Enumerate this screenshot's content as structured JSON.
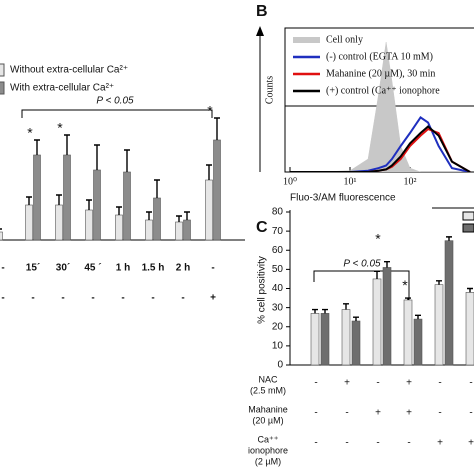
{
  "chart_data": [
    {
      "type": "bar",
      "annotation": "P < 0.05",
      "star": "*",
      "categories": [
        "-",
        "15´",
        "30´",
        "45 ´",
        "1 h",
        "1.5 h",
        "2 h",
        "-"
      ],
      "condition_row": [
        "-",
        "-",
        "-",
        "-",
        "-",
        "-",
        "-",
        "+"
      ],
      "stars": [
        false,
        true,
        true,
        false,
        false,
        false,
        false,
        true
      ],
      "series": [
        {
          "name": "Without extra-cellular Ca²⁺",
          "color": "#e6e6e6",
          "values": [
            8,
            35,
            35,
            30,
            25,
            20,
            18,
            60
          ],
          "errors": [
            3,
            8,
            10,
            10,
            8,
            8,
            6,
            15
          ]
        },
        {
          "name": "With extra-cellular Ca²⁺",
          "color": "#8c8c8c",
          "values": [
            null,
            85,
            85,
            70,
            68,
            42,
            20,
            100
          ],
          "errors": [
            null,
            15,
            20,
            25,
            22,
            18,
            8,
            22
          ]
        }
      ]
    },
    {
      "type": "line",
      "panel": "B",
      "log_x": true,
      "xlabel": "Fluo-3/AM fluorescence",
      "ylabel": "Counts",
      "xlim": [
        1,
        1000
      ],
      "xticks": [
        {
          "value": 1,
          "label": "10⁰"
        },
        {
          "value": 10,
          "label": "10¹"
        },
        {
          "value": 100,
          "label": "10²"
        }
      ],
      "x": [
        1,
        3,
        10,
        20,
        30,
        40,
        50,
        70,
        100,
        150,
        200,
        300,
        500,
        1000
      ],
      "series": [
        {
          "name": "Cell only",
          "color": "#c8c8c8",
          "fill": true,
          "values": [
            0,
            0,
            1,
            10,
            60,
            100,
            70,
            20,
            3,
            0,
            0,
            0,
            0,
            0
          ]
        },
        {
          "name": "(-) control (EGTA 10 mM)",
          "color": "#1f2fbf",
          "values": [
            0,
            0,
            0,
            1,
            3,
            5,
            10,
            20,
            30,
            42,
            38,
            20,
            3,
            0
          ]
        },
        {
          "name": "Mahanine  (20 µM), 30 min",
          "color": "#e01010",
          "values": [
            0,
            0,
            0,
            0,
            1,
            2,
            4,
            10,
            20,
            28,
            33,
            30,
            8,
            0
          ]
        },
        {
          "name": "(+) control (Ca⁺⁺ ionophore",
          "color": "#000000",
          "values": [
            0,
            0,
            0,
            0,
            1,
            2,
            5,
            12,
            22,
            30,
            35,
            28,
            8,
            0
          ]
        }
      ]
    },
    {
      "type": "bar",
      "panel": "C",
      "ylabel": "% cell positivity",
      "annotation": "P < 0.05",
      "star": "*",
      "ylim": [
        0,
        80
      ],
      "yticks": [
        0,
        10,
        20,
        30,
        40,
        50,
        60,
        70,
        80
      ],
      "stars": [
        false,
        false,
        true,
        true,
        false,
        false
      ],
      "conditions": [
        {
          "label": [
            "NAC",
            "(2.5 mM)"
          ],
          "values": [
            "-",
            "+",
            "-",
            "+",
            "-",
            "-"
          ]
        },
        {
          "label": [
            "Mahanine",
            "(20 µM)"
          ],
          "values": [
            "-",
            "-",
            "+",
            "+",
            "-",
            "-"
          ]
        },
        {
          "label": [
            "Ca⁺⁺",
            "ionophore",
            "(2 µM)"
          ],
          "values": [
            "-",
            "-",
            "-",
            "-",
            "+",
            "+"
          ]
        }
      ],
      "series": [
        {
          "color": "#e6e6e6",
          "values": [
            27,
            29,
            45,
            34,
            42,
            38
          ],
          "errors": [
            2,
            3,
            4,
            1,
            2,
            2
          ]
        },
        {
          "color": "#6e6e6e",
          "values": [
            27,
            23,
            51,
            24,
            65,
            null
          ],
          "errors": [
            2,
            2,
            3,
            2,
            2,
            null
          ]
        }
      ]
    }
  ]
}
